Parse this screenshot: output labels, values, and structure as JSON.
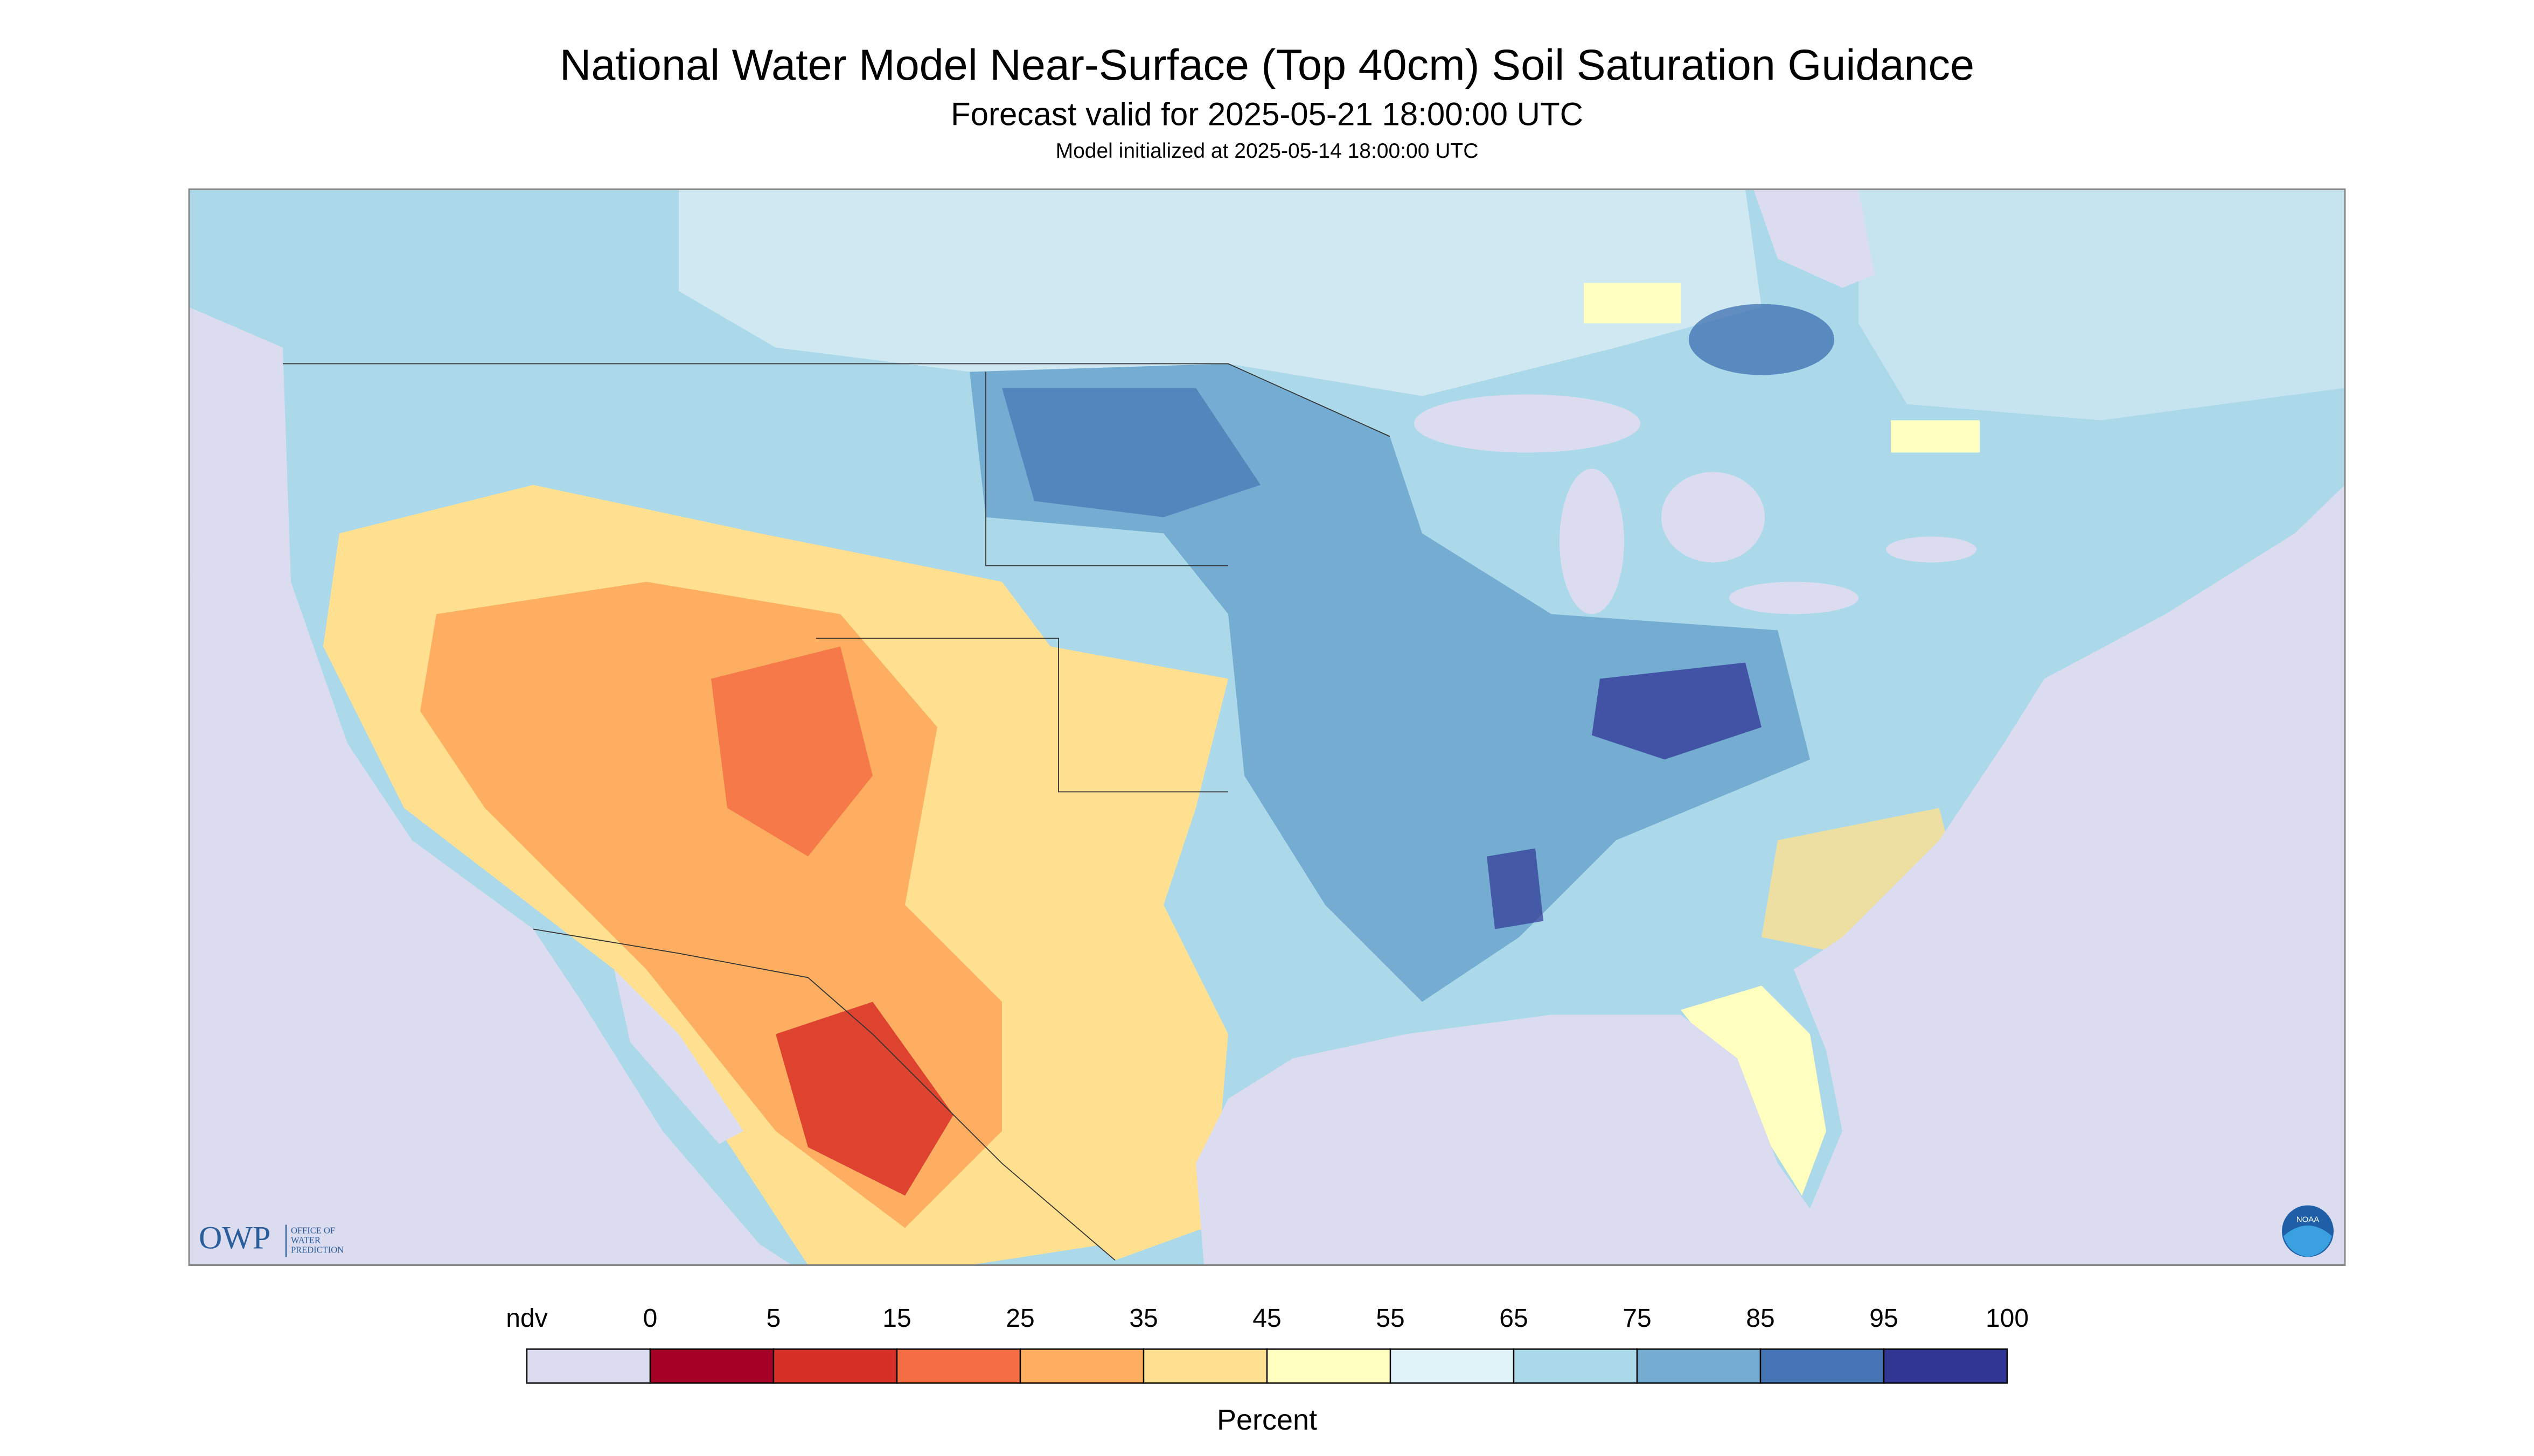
{
  "header": {
    "title": "National Water Model Near-Surface (Top 40cm) Soil Saturation Guidance",
    "subtitle": "Forecast valid for 2025-05-21 18:00:00 UTC",
    "init": "Model initialized at 2025-05-14 18:00:00 UTC"
  },
  "legend": {
    "ticks": [
      "ndv",
      0,
      5,
      15,
      25,
      35,
      45,
      55,
      65,
      75,
      85,
      95,
      100
    ],
    "colors": [
      "#dcdcf0",
      "#a50026",
      "#d73027",
      "#f46d43",
      "#fdae61",
      "#fee090",
      "#ffffbf",
      "#e0f3f8",
      "#abd9e9",
      "#74add1",
      "#4575b4",
      "#313695"
    ],
    "label": "Percent"
  },
  "logos": {
    "owp": "OWP",
    "owp_text": [
      "OFFICE OF",
      "WATER",
      "PREDICTION"
    ],
    "noaa": "NOAA"
  }
}
